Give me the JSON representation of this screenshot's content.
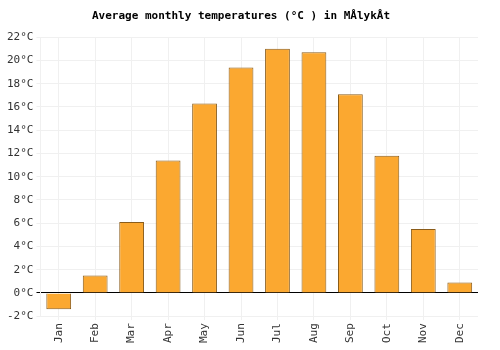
{
  "chart_data": {
    "type": "bar",
    "title": "Average monthly temperatures (°C ) in MÅlykÅt",
    "categories": [
      "Jan",
      "Feb",
      "Mar",
      "Apr",
      "May",
      "Jun",
      "Jul",
      "Aug",
      "Sep",
      "Oct",
      "Nov",
      "Dec"
    ],
    "values": [
      -1.4,
      1.5,
      6.1,
      11.4,
      16.3,
      19.4,
      21.0,
      20.7,
      17.1,
      11.8,
      5.5,
      0.9
    ],
    "color": "#fba830",
    "ylim": [
      -2,
      22
    ],
    "yticks": [
      {
        "value": -2,
        "label": "-2°C"
      },
      {
        "value": 0,
        "label": "0°C"
      },
      {
        "value": 2,
        "label": "2°C"
      },
      {
        "value": 4,
        "label": "4°C"
      },
      {
        "value": 6,
        "label": "6°C"
      },
      {
        "value": 8,
        "label": "8°C"
      },
      {
        "value": 10,
        "label": "10°C"
      },
      {
        "value": 12,
        "label": "12°C"
      },
      {
        "value": 14,
        "label": "14°C"
      },
      {
        "value": 16,
        "label": "16°C"
      },
      {
        "value": 18,
        "label": "18°C"
      },
      {
        "value": 20,
        "label": "20°C"
      },
      {
        "value": 22,
        "label": "22°C"
      }
    ],
    "grid": true
  }
}
